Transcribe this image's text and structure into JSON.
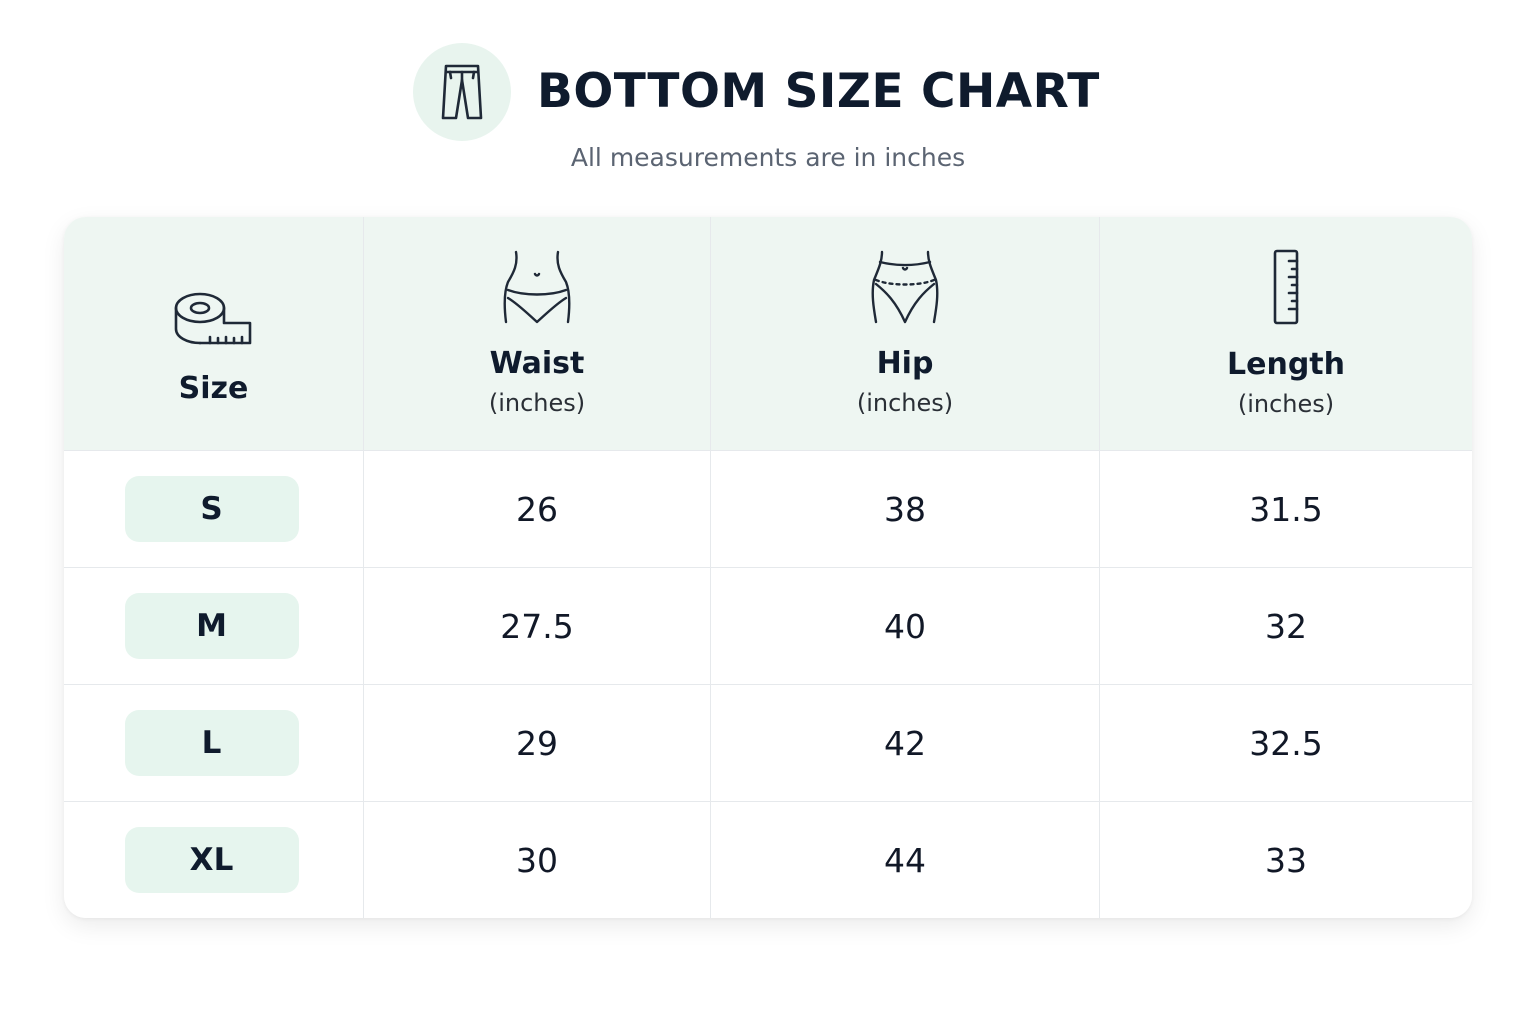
{
  "header": {
    "icon": "pants-icon",
    "title": "BOTTOM SIZE CHART",
    "subtitle": "All measurements are in inches"
  },
  "table": {
    "columns": [
      {
        "label": "Size",
        "unit": "",
        "icon": "measuring-tape-icon"
      },
      {
        "label": "Waist",
        "unit": "(inches)",
        "icon": "waist-icon"
      },
      {
        "label": "Hip",
        "unit": "(inches)",
        "icon": "hip-icon"
      },
      {
        "label": "Length",
        "unit": "(inches)",
        "icon": "ruler-icon"
      }
    ],
    "rows": [
      {
        "size": "S",
        "waist": "26",
        "hip": "38",
        "length": "31.5"
      },
      {
        "size": "M",
        "waist": "27.5",
        "hip": "40",
        "length": "32"
      },
      {
        "size": "L",
        "waist": "29",
        "hip": "42",
        "length": "32.5"
      },
      {
        "size": "XL",
        "waist": "30",
        "hip": "44",
        "length": "33"
      }
    ]
  },
  "colors": {
    "header_bg": "#eef6f2",
    "pill_bg": "#e6f5ee",
    "icon_circle": "#e8f4ee",
    "title": "#0f1b2d"
  }
}
